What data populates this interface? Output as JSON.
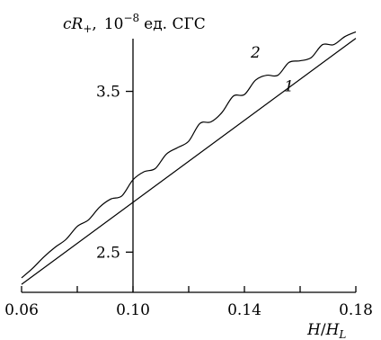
{
  "chart_data": {
    "type": "line",
    "title": "",
    "ylabel_parts": {
      "symbol_main": "cR",
      "symbol_sub": "+",
      "separator": ",",
      "magnitude": "10",
      "exponent": "−8",
      "units": "ед. СГС"
    },
    "xlabel_parts": {
      "H": "H",
      "slash": "/",
      "HL": "H",
      "sub": "L"
    },
    "xlim": [
      0.06,
      0.18
    ],
    "ylim": [
      2.25,
      3.85
    ],
    "x_ticks": [
      0.06,
      0.08,
      0.1,
      0.12,
      0.14,
      0.16,
      0.18
    ],
    "x_tick_labels": [
      "0.06",
      "0.10",
      "0.14",
      "0.18"
    ],
    "x_tick_label_values": [
      0.06,
      0.1,
      0.14,
      0.18
    ],
    "y_ticks": [
      2.5,
      3.5
    ],
    "y_tick_labels": [
      "2.5",
      "3.5"
    ],
    "y_axis_at_x": 0.1,
    "grid": false,
    "series": [
      {
        "label": "1",
        "label_at": [
          0.156,
          3.5
        ],
        "x": [
          0.06,
          0.18
        ],
        "y": [
          2.3,
          3.83
        ]
      },
      {
        "label": "2",
        "label_at": [
          0.144,
          3.71
        ],
        "x": [
          0.06,
          0.064,
          0.068,
          0.072,
          0.076,
          0.08,
          0.084,
          0.088,
          0.092,
          0.096,
          0.1,
          0.104,
          0.108,
          0.112,
          0.116,
          0.12,
          0.124,
          0.128,
          0.132,
          0.136,
          0.14,
          0.144,
          0.148,
          0.152,
          0.156,
          0.16,
          0.164,
          0.168,
          0.172,
          0.176,
          0.18
        ],
        "y": [
          2.34,
          2.4,
          2.47,
          2.53,
          2.58,
          2.66,
          2.7,
          2.78,
          2.83,
          2.85,
          2.95,
          3.0,
          3.02,
          3.11,
          3.15,
          3.19,
          3.3,
          3.31,
          3.37,
          3.47,
          3.48,
          3.57,
          3.6,
          3.6,
          3.68,
          3.69,
          3.71,
          3.79,
          3.79,
          3.84,
          3.87
        ]
      }
    ]
  }
}
